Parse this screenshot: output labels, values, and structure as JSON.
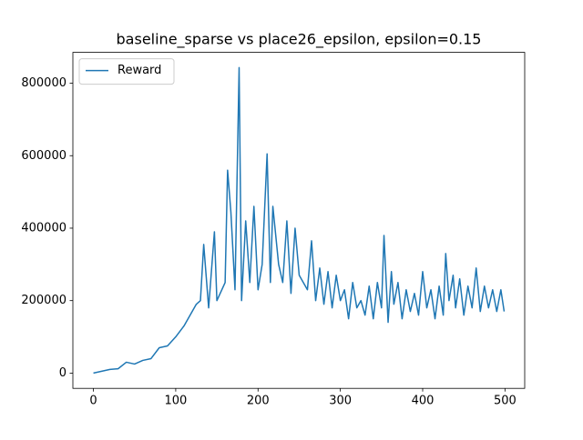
{
  "chart_data": {
    "type": "line",
    "title": "baseline_sparse vs place26_epsilon, epsilon=0.15",
    "legend": "upper left",
    "grid": false,
    "xlim": [
      -24.95,
      523.95
    ],
    "ylim": [
      -42150,
      885150
    ],
    "xticks": [
      0,
      100,
      200,
      300,
      400,
      500
    ],
    "yticks": [
      0,
      200000,
      400000,
      600000,
      800000
    ],
    "x": [
      0,
      10,
      20,
      30,
      40,
      50,
      60,
      70,
      80,
      90,
      100,
      110,
      120,
      125,
      130,
      134,
      140,
      147,
      150,
      160,
      163,
      167,
      172,
      177,
      180,
      185,
      190,
      195,
      200,
      205,
      211,
      215,
      218,
      225,
      230,
      235,
      240,
      245,
      250,
      255,
      260,
      265,
      270,
      275,
      280,
      285,
      290,
      295,
      300,
      305,
      310,
      315,
      320,
      325,
      330,
      335,
      340,
      345,
      350,
      353,
      358,
      362,
      365,
      370,
      375,
      380,
      385,
      390,
      395,
      400,
      405,
      410,
      415,
      420,
      425,
      428,
      432,
      437,
      440,
      445,
      450,
      455,
      460,
      465,
      470,
      475,
      480,
      485,
      490,
      495,
      499
    ],
    "series": [
      {
        "name": "Reward",
        "color": "#1f77b4",
        "values": [
          0,
          5000,
          10000,
          12000,
          30000,
          25000,
          35000,
          40000,
          70000,
          75000,
          100000,
          130000,
          170000,
          190000,
          200000,
          355000,
          180000,
          390000,
          200000,
          250000,
          560000,
          445000,
          230000,
          843000,
          200000,
          420000,
          250000,
          460000,
          230000,
          300000,
          605000,
          250000,
          460000,
          300000,
          250000,
          420000,
          220000,
          400000,
          270000,
          250000,
          230000,
          365000,
          200000,
          290000,
          190000,
          280000,
          180000,
          270000,
          200000,
          230000,
          150000,
          250000,
          180000,
          200000,
          160000,
          240000,
          150000,
          250000,
          180000,
          380000,
          140000,
          280000,
          190000,
          250000,
          150000,
          230000,
          170000,
          220000,
          160000,
          280000,
          180000,
          230000,
          150000,
          240000,
          160000,
          330000,
          200000,
          270000,
          180000,
          260000,
          160000,
          240000,
          180000,
          290000,
          170000,
          240000,
          180000,
          230000,
          170000,
          230000,
          170000
        ]
      }
    ]
  }
}
